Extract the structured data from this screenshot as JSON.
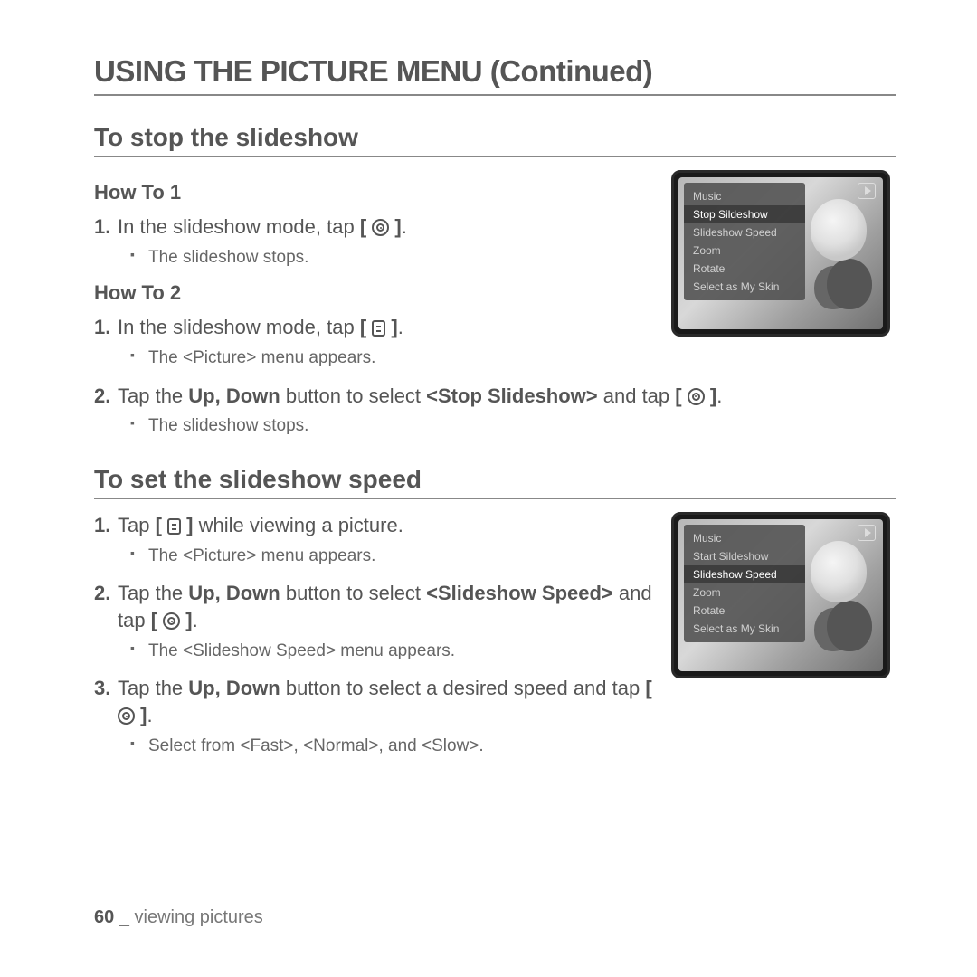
{
  "page_title": "USING THE PICTURE MENU (Continued)",
  "section1": {
    "title": "To stop the slideshow",
    "howto1_label": "How To 1",
    "howto1_step1_num": "1.",
    "howto1_step1_a": "In the slideshow mode, tap ",
    "howto1_step1_b": ".",
    "howto1_bullet1": "The slideshow stops.",
    "howto2_label": "How To 2",
    "howto2_step1_num": "1.",
    "howto2_step1_a": "In the slideshow mode, tap ",
    "howto2_step1_b": ".",
    "howto2_bullet1": "The <Picture> menu appears.",
    "howto2_step2_num": "2.",
    "howto2_step2_a": "Tap the ",
    "howto2_step2_b": "Up, Down",
    "howto2_step2_c": " button to select ",
    "howto2_step2_d": "<Stop Slideshow>",
    "howto2_step2_e": " and tap ",
    "howto2_step2_f": ".",
    "howto2_bullet2": "The slideshow stops."
  },
  "section2": {
    "title": "To set the slideshow speed",
    "step1_num": "1.",
    "step1_a": "Tap ",
    "step1_b": " while viewing a picture.",
    "bullet1": "The <Picture> menu appears.",
    "step2_num": "2.",
    "step2_a": "Tap the ",
    "step2_b": "Up, Down",
    "step2_c": " button to select ",
    "step2_d": "<Slideshow Speed>",
    "step2_e": " and tap ",
    "step2_f": ".",
    "bullet2": "The <Slideshow Speed> menu appears.",
    "step3_num": "3.",
    "step3_a": "Tap the ",
    "step3_b": "Up, Down",
    "step3_c": " button to select a desired speed and tap ",
    "step3_d": ".",
    "bullet3": "Select from <Fast>, <Normal>, and <Slow>."
  },
  "device1_menu": [
    "Music",
    "Stop Sildeshow",
    "Slideshow Speed",
    "Zoom",
    "Rotate",
    "Select as My Skin"
  ],
  "device1_selected_index": 1,
  "device2_menu": [
    "Music",
    "Start Sildeshow",
    "Slideshow Speed",
    "Zoom",
    "Rotate",
    "Select as My Skin"
  ],
  "device2_selected_index": 2,
  "footer": {
    "page_num": "60",
    "sep": " _ ",
    "section": "viewing pictures"
  },
  "colors": {
    "text": "#5a5a5a",
    "heading": "#555555",
    "rule": "#888888",
    "footer": "#777777",
    "device_border": "#2a2a2a",
    "overlay_bg": "rgba(80,80,80,0.88)",
    "overlay_text": "#d0d0d0",
    "overlay_sel_text": "#ffffff"
  },
  "typography": {
    "title_pt": 33,
    "section_pt": 28,
    "sub_pt": 22,
    "body_pt": 22,
    "bullet_pt": 19,
    "menu_pt": 12
  }
}
